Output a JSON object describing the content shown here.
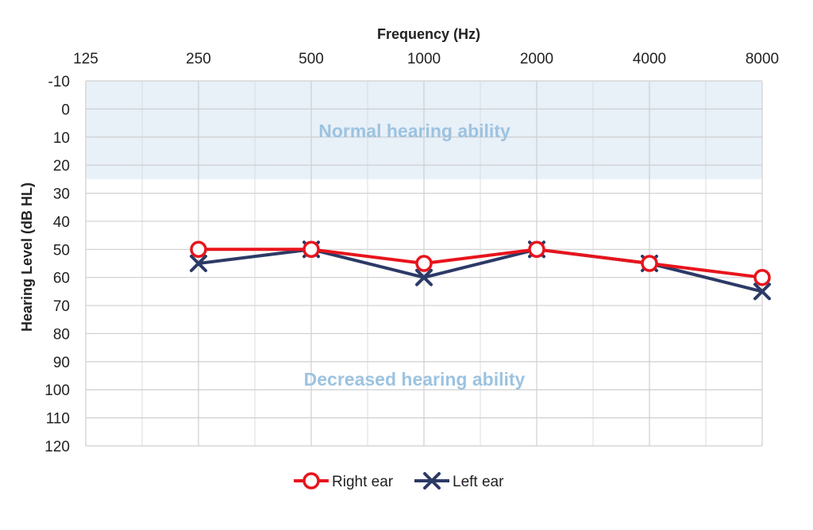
{
  "chart_data": {
    "type": "line",
    "xlabel": "Frequency (Hz)",
    "ylabel": "Hearing Level (dB HL)",
    "x_ticks": [
      "125",
      "250",
      "500",
      "1000",
      "2000",
      "4000",
      "8000"
    ],
    "y_ticks": [
      "-10",
      "0",
      "10",
      "20",
      "30",
      "40",
      "50",
      "60",
      "70",
      "80",
      "90",
      "100",
      "110",
      "120"
    ],
    "ylim": [
      -10,
      120
    ],
    "y_inverted": true,
    "x_scale": "log2",
    "grid": true,
    "regions": [
      {
        "label": "Normal hearing ability",
        "from": -10,
        "to": 25,
        "color": "#e8f0f8",
        "label_color": "#9cc3e0"
      },
      {
        "label": "Decreased hearing ability",
        "from": 25,
        "to": 120,
        "color": "#ffffff",
        "label_color": "#9cc3e0"
      }
    ],
    "x": [
      250,
      500,
      1000,
      2000,
      4000,
      8000
    ],
    "series": [
      {
        "name": "Right ear",
        "marker": "circle",
        "color": "#e8141c",
        "values": [
          50,
          50,
          55,
          50,
          55,
          60
        ]
      },
      {
        "name": "Left ear",
        "marker": "cross",
        "color": "#2c3a66",
        "values": [
          55,
          50,
          60,
          50,
          55,
          65
        ]
      }
    ],
    "legend_position": "bottom-center"
  }
}
